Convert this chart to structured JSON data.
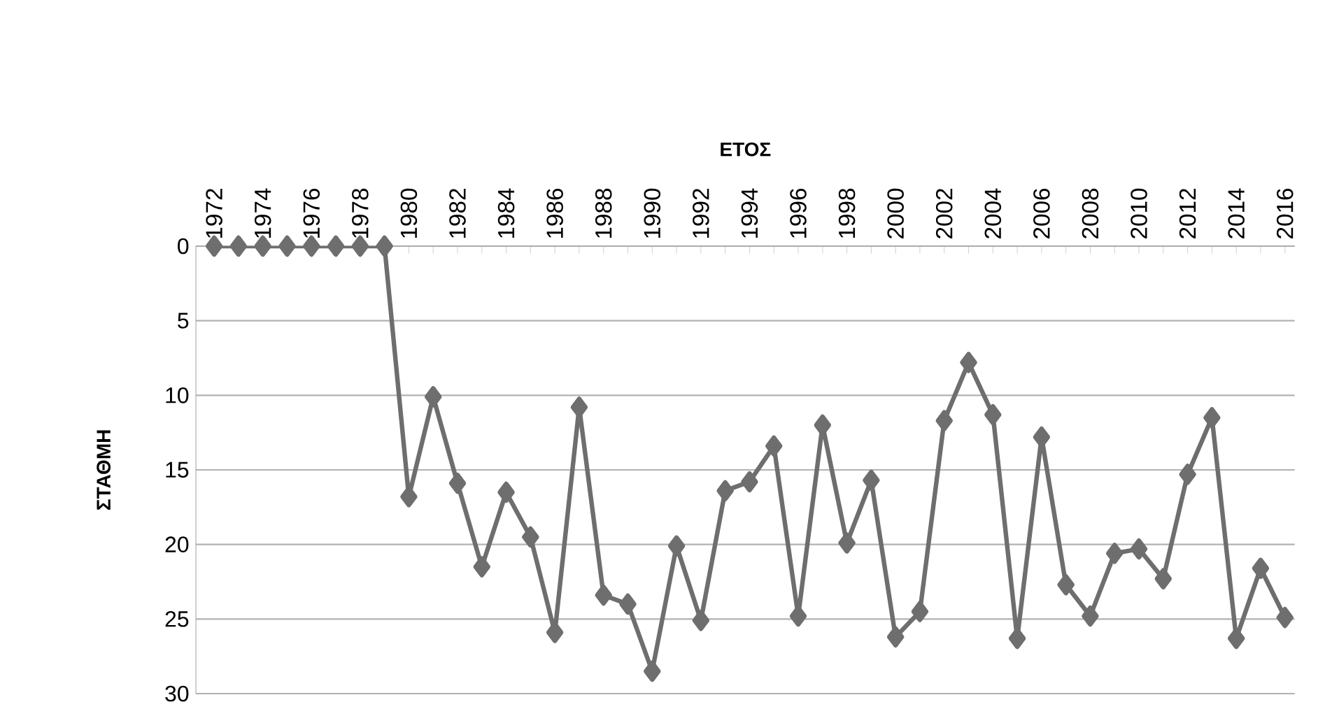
{
  "chart_data": {
    "type": "line",
    "xlabel": "ΕΤΟΣ",
    "ylabel": "ΣΤΑΘΜΗ",
    "categories": [
      "1972",
      null,
      "1974",
      null,
      "1976",
      null,
      "1978",
      null,
      "1980",
      null,
      "1982",
      null,
      "1984",
      null,
      "1986",
      null,
      "1988",
      null,
      "1990",
      null,
      "1992",
      null,
      "1994",
      null,
      "1996",
      null,
      "1998",
      null,
      "2000",
      null,
      "2002",
      null,
      "2004",
      null,
      "2006",
      null,
      "2008",
      null,
      "2010",
      null,
      "2012",
      null,
      "2014",
      null,
      "2016"
    ],
    "values": [
      0,
      0,
      0,
      0,
      0,
      0,
      0,
      0,
      16.8,
      10.1,
      15.9,
      21.5,
      16.5,
      19.5,
      25.9,
      10.8,
      23.4,
      24.0,
      28.5,
      20.1,
      25.1,
      16.4,
      15.8,
      13.4,
      24.8,
      12.0,
      19.9,
      15.7,
      26.2,
      24.5,
      11.7,
      7.8,
      11.3,
      26.3,
      12.8,
      22.7,
      24.8,
      20.6,
      20.3,
      22.3,
      15.3,
      11.5,
      26.3,
      21.6,
      24.9
    ],
    "color": "#6e6e6e",
    "ylim": [
      30,
      0
    ],
    "yticks": [
      0,
      5,
      10,
      15,
      20,
      25,
      30
    ],
    "grid": "y",
    "marker": "diamond",
    "line_style": "solid"
  }
}
